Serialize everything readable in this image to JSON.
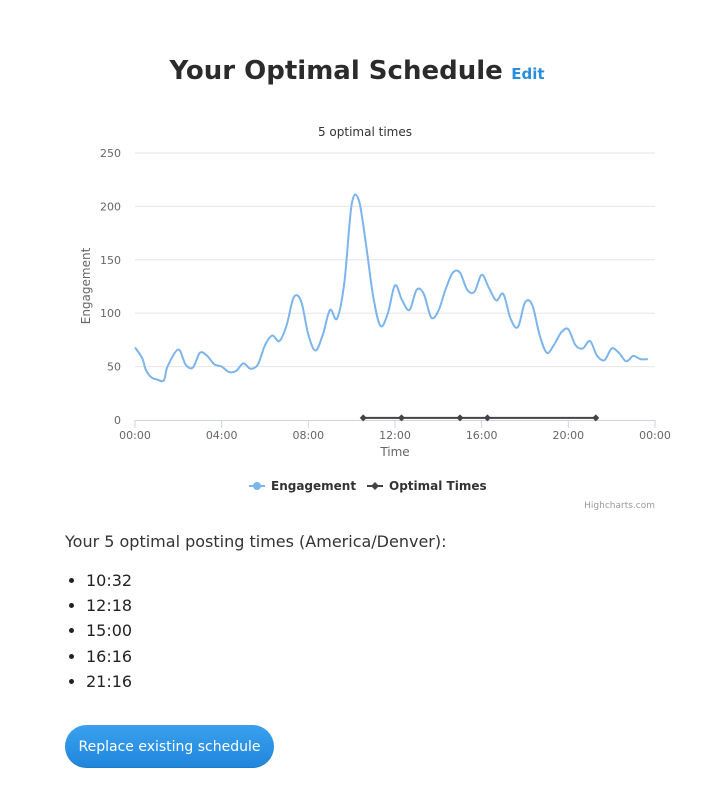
{
  "header": {
    "title": "Your Optimal Schedule",
    "edit_label": "Edit"
  },
  "chart_data": {
    "type": "line",
    "title": "5 optimal times",
    "xlabel": "Time",
    "ylabel": "Engagement",
    "ylim": [
      0,
      250
    ],
    "yticks": [
      "0",
      "50",
      "100",
      "150",
      "200",
      "250"
    ],
    "xlim_hours": [
      0,
      24
    ],
    "xticks": [
      "00:00",
      "04:00",
      "08:00",
      "12:00",
      "16:00",
      "20:00",
      "00:00"
    ],
    "grid": true,
    "legend_position": "bottom-center",
    "credits": "Highcharts.com",
    "series": [
      {
        "name": "Engagement",
        "color": "#7cb5ec",
        "points": [
          [
            0.0,
            68
          ],
          [
            0.33,
            58
          ],
          [
            0.5,
            47
          ],
          [
            0.75,
            40
          ],
          [
            1.0,
            38
          ],
          [
            1.33,
            37
          ],
          [
            1.5,
            50
          ],
          [
            2.0,
            66
          ],
          [
            2.33,
            52
          ],
          [
            2.67,
            49
          ],
          [
            3.0,
            63
          ],
          [
            3.33,
            60
          ],
          [
            3.67,
            52
          ],
          [
            4.0,
            50
          ],
          [
            4.33,
            45
          ],
          [
            4.67,
            46
          ],
          [
            5.0,
            53
          ],
          [
            5.33,
            48
          ],
          [
            5.67,
            52
          ],
          [
            6.0,
            70
          ],
          [
            6.33,
            79
          ],
          [
            6.67,
            74
          ],
          [
            7.0,
            89
          ],
          [
            7.33,
            115
          ],
          [
            7.67,
            111
          ],
          [
            8.0,
            80
          ],
          [
            8.33,
            65
          ],
          [
            8.67,
            80
          ],
          [
            9.0,
            103
          ],
          [
            9.33,
            95
          ],
          [
            9.67,
            130
          ],
          [
            10.0,
            202
          ],
          [
            10.33,
            206
          ],
          [
            10.67,
            163
          ],
          [
            11.0,
            115
          ],
          [
            11.33,
            88
          ],
          [
            11.67,
            100
          ],
          [
            12.0,
            126
          ],
          [
            12.33,
            112
          ],
          [
            12.67,
            103
          ],
          [
            13.0,
            122
          ],
          [
            13.33,
            118
          ],
          [
            13.67,
            96
          ],
          [
            14.0,
            102
          ],
          [
            14.33,
            122
          ],
          [
            14.67,
            138
          ],
          [
            15.0,
            138
          ],
          [
            15.33,
            122
          ],
          [
            15.67,
            120
          ],
          [
            16.0,
            136
          ],
          [
            16.33,
            124
          ],
          [
            16.67,
            112
          ],
          [
            17.0,
            118
          ],
          [
            17.33,
            95
          ],
          [
            17.67,
            87
          ],
          [
            18.0,
            110
          ],
          [
            18.33,
            108
          ],
          [
            18.67,
            80
          ],
          [
            19.0,
            63
          ],
          [
            19.33,
            70
          ],
          [
            19.67,
            82
          ],
          [
            20.0,
            85
          ],
          [
            20.33,
            70
          ],
          [
            20.67,
            67
          ],
          [
            21.0,
            74
          ],
          [
            21.33,
            60
          ],
          [
            21.67,
            56
          ],
          [
            22.0,
            67
          ],
          [
            22.33,
            63
          ],
          [
            22.67,
            55
          ],
          [
            23.0,
            60
          ],
          [
            23.33,
            57
          ],
          [
            23.67,
            57
          ]
        ]
      },
      {
        "name": "Optimal Times",
        "color": "#434348",
        "x_labels": [
          "10:32",
          "12:18",
          "15:00",
          "16:16",
          "21:16"
        ],
        "x_hours": [
          10.533,
          12.3,
          15.0,
          16.267,
          21.267
        ],
        "y": 2
      }
    ]
  },
  "schedule": {
    "heading": "Your 5 optimal posting times (America/Denver):",
    "times": [
      "10:32",
      "12:18",
      "15:00",
      "16:16",
      "21:16"
    ]
  },
  "actions": {
    "replace_label": "Replace existing schedule",
    "button_color": "#2b93e6"
  }
}
